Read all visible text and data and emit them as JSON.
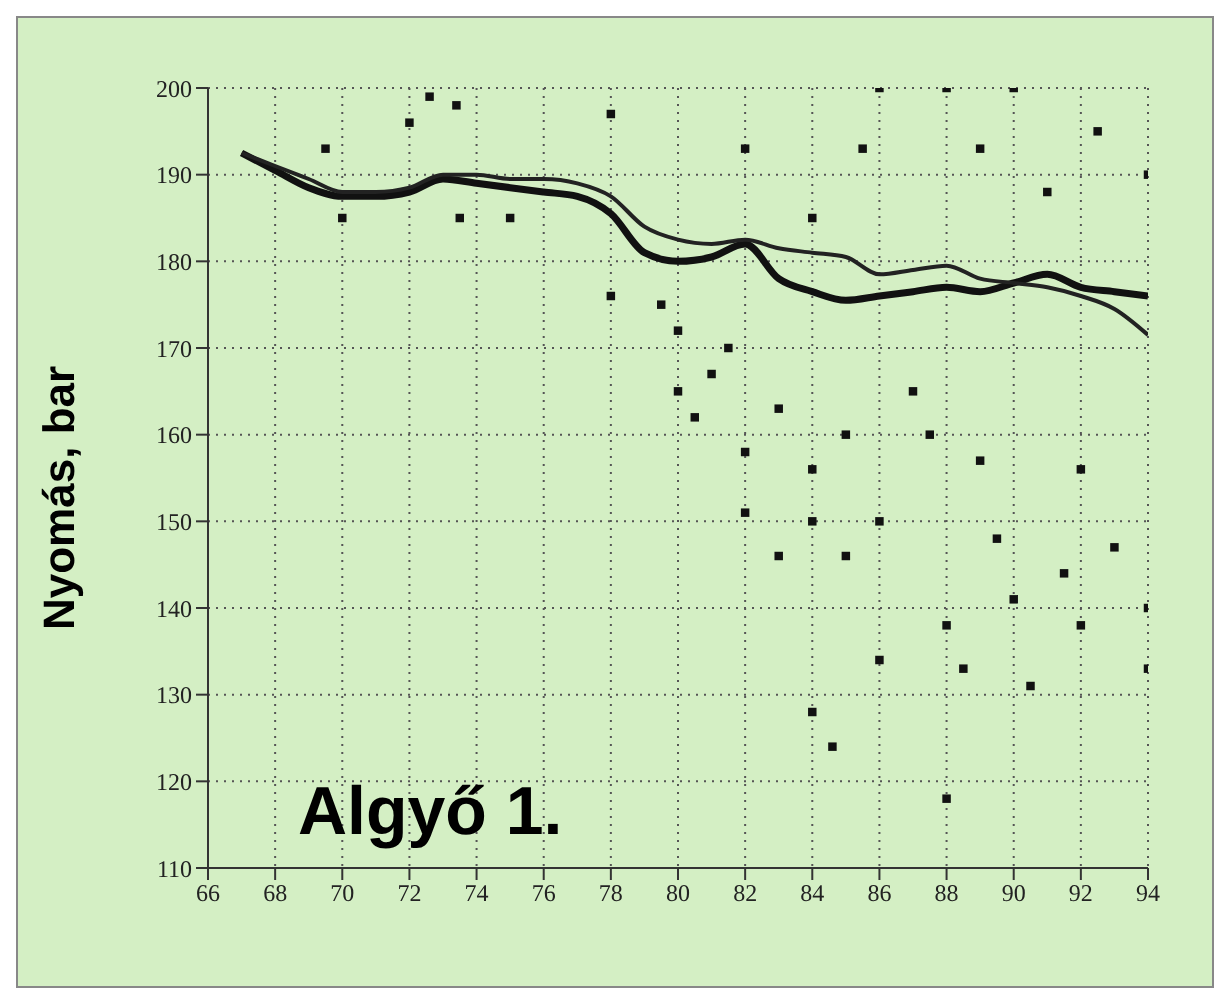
{
  "chart_data": {
    "type": "line",
    "ylabel": "Nyomás, bar",
    "annotations": [
      "Algyő 1."
    ],
    "xlim": [
      66,
      94
    ],
    "xticks": [
      66,
      68,
      70,
      72,
      74,
      76,
      78,
      80,
      82,
      84,
      86,
      88,
      90,
      92,
      94
    ],
    "ylim": [
      110,
      200
    ],
    "yticks": [
      110,
      120,
      130,
      140,
      150,
      160,
      170,
      180,
      190,
      200
    ],
    "grid": true,
    "marker": "none",
    "line_style": "solid",
    "series": [
      {
        "color": "#111111",
        "x": [
          67,
          68,
          69,
          70,
          71,
          72,
          73,
          74,
          75,
          76,
          77,
          78,
          79,
          80,
          81,
          82,
          83,
          84,
          85,
          86,
          87,
          88,
          89,
          90,
          91,
          92,
          93,
          94
        ],
        "values": [
          192.5,
          190.5,
          188.5,
          187.5,
          187.5,
          188,
          189.5,
          189,
          188.5,
          188,
          187.5,
          185.5,
          181,
          180,
          180.5,
          182,
          178,
          176.5,
          175.5,
          176,
          176.5,
          177,
          176.5,
          177.5,
          178.5,
          177,
          176.5,
          176
        ]
      },
      {
        "color": "#222222",
        "x": [
          67,
          68,
          69,
          70,
          71,
          72,
          73,
          74,
          75,
          76,
          77,
          78,
          79,
          80,
          81,
          82,
          83,
          84,
          85,
          86,
          87,
          88,
          89,
          90,
          91,
          92,
          93,
          94
        ],
        "values": [
          192.5,
          191,
          189.5,
          188,
          188,
          188.5,
          190,
          190,
          189.5,
          189.5,
          189,
          187.5,
          184,
          182.5,
          182,
          182.5,
          181.5,
          181,
          180.5,
          178.5,
          179,
          179.5,
          178,
          177.5,
          177,
          176,
          174.5,
          171.5
        ]
      },
      {
        "type": "scatter",
        "color": "#111111",
        "marker": "square",
        "x": [
          69.5,
          70,
          72,
          72.6,
          73.4,
          73.5,
          75,
          78,
          78,
          79.5,
          80,
          80,
          80.5,
          81,
          81.5,
          82,
          82,
          82,
          83,
          83,
          84,
          84,
          84,
          84,
          84.6,
          85,
          85,
          85.5,
          86,
          86,
          86,
          87,
          87.5,
          88,
          88,
          88,
          88.5,
          89,
          89,
          89.5,
          90,
          90,
          90.5,
          91,
          91.5,
          92,
          92,
          92.5,
          93,
          94,
          94,
          94
        ],
        "values": [
          193,
          185,
          196,
          199,
          198,
          185,
          185,
          197,
          176,
          175,
          172,
          165,
          162,
          167,
          170,
          158,
          151,
          193,
          163,
          146,
          185,
          156,
          150,
          128,
          124,
          160,
          146,
          193,
          200,
          150,
          134,
          165,
          160,
          200,
          138,
          118,
          133,
          193,
          157,
          148,
          200,
          141,
          131,
          188,
          144,
          156,
          138,
          195,
          147,
          190,
          140,
          133
        ]
      }
    ]
  }
}
